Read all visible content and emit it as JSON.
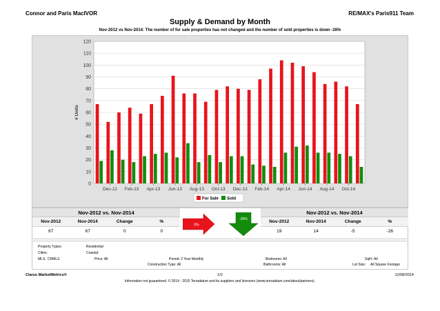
{
  "header": {
    "agent": "Connor and Paris MacIVOR",
    "team": "RE/MAX's Paris911 Team"
  },
  "title": "Supply & Demand by Month",
  "subtitle": "Nov-2012 vs Nov-2014: The number of for sale properties has not changed and the number of sold properties is down -26%",
  "chart_data": {
    "type": "bar",
    "ylabel": "# Units",
    "xlabel": "",
    "ylim": [
      0,
      120
    ],
    "yticks": [
      0,
      10,
      20,
      30,
      40,
      50,
      60,
      70,
      80,
      90,
      100,
      110,
      120
    ],
    "grid": true,
    "legend": "bottom-center",
    "categories": [
      "Nov-12",
      "Dec-12",
      "Jan-13",
      "Feb-13",
      "Mar-13",
      "Apr-13",
      "May-13",
      "Jun-13",
      "Jul-13",
      "Aug-13",
      "Sep-13",
      "Oct-13",
      "Nov-13",
      "Dec-13",
      "Jan-14",
      "Feb-14",
      "Mar-14",
      "Apr-14",
      "May-14",
      "Jun-14",
      "Jul-14",
      "Aug-14",
      "Sep-14",
      "Oct-14",
      "Nov-14"
    ],
    "xtick_labels": [
      "Dec-12",
      "Feb-13",
      "Apr-13",
      "Jun-13",
      "Aug-13",
      "Oct-13",
      "Dec-13",
      "Feb-14",
      "Apr-14",
      "Jun-14",
      "Aug-14",
      "Oct-14"
    ],
    "series": [
      {
        "name": "For Sale",
        "color": "#e8141c",
        "values": [
          67,
          52,
          60,
          64,
          59,
          67,
          74,
          91,
          76,
          76,
          69,
          79,
          82,
          80,
          79,
          88,
          97,
          104,
          102,
          99,
          94,
          84,
          86,
          82,
          67
        ]
      },
      {
        "name": "Sold",
        "color": "#138c0d",
        "values": [
          19,
          28,
          20,
          18,
          23,
          25,
          26,
          22,
          34,
          18,
          24,
          18,
          23,
          23,
          16,
          15,
          14,
          26,
          31,
          32,
          26,
          26,
          25,
          23,
          14
        ]
      }
    ]
  },
  "stats_left": {
    "title": "Nov-2012 vs. Nov-2014",
    "headers": [
      "Nov-2012",
      "Nov-2014",
      "Change",
      "%"
    ],
    "values": [
      "67",
      "67",
      "0",
      "0"
    ]
  },
  "indicator_left": {
    "label": "0%",
    "color": "#e8141c"
  },
  "indicator_right": {
    "label": "-26%",
    "color": "#138c0d"
  },
  "stats_right": {
    "title": "Nov-2012 vs. Nov-2014",
    "headers": [
      "Nov-2012",
      "Nov-2014",
      "Change",
      "%"
    ],
    "values": [
      "19",
      "14",
      "-5",
      "-26"
    ]
  },
  "criteria": {
    "property_types_label": "Property Types:",
    "property_types_value": "Residential",
    "cities_label": "Cities:",
    "cities_value": "Coastal:",
    "mls_label": "MLS:",
    "mls_value": "CRMLS",
    "price": "Price: All",
    "period": "Period: 2 Year Monthly",
    "construction": "Construction Type: All",
    "bedrooms": "Bedrooms: All",
    "bathrooms": "Bathrooms: All",
    "sqft": "SqFt: All",
    "lot_size_label": "Lot Size:",
    "lot_size_value": "All Square Footage"
  },
  "footer": {
    "brand": "Clarus MarketMetrics®",
    "page": "1/2",
    "date": "12/08/2014",
    "disclaimer": "Information not guaranteed. © 2014 - 2015 Terradatum and its suppliers and licensors (www.terradatum.com/about/partners)."
  }
}
